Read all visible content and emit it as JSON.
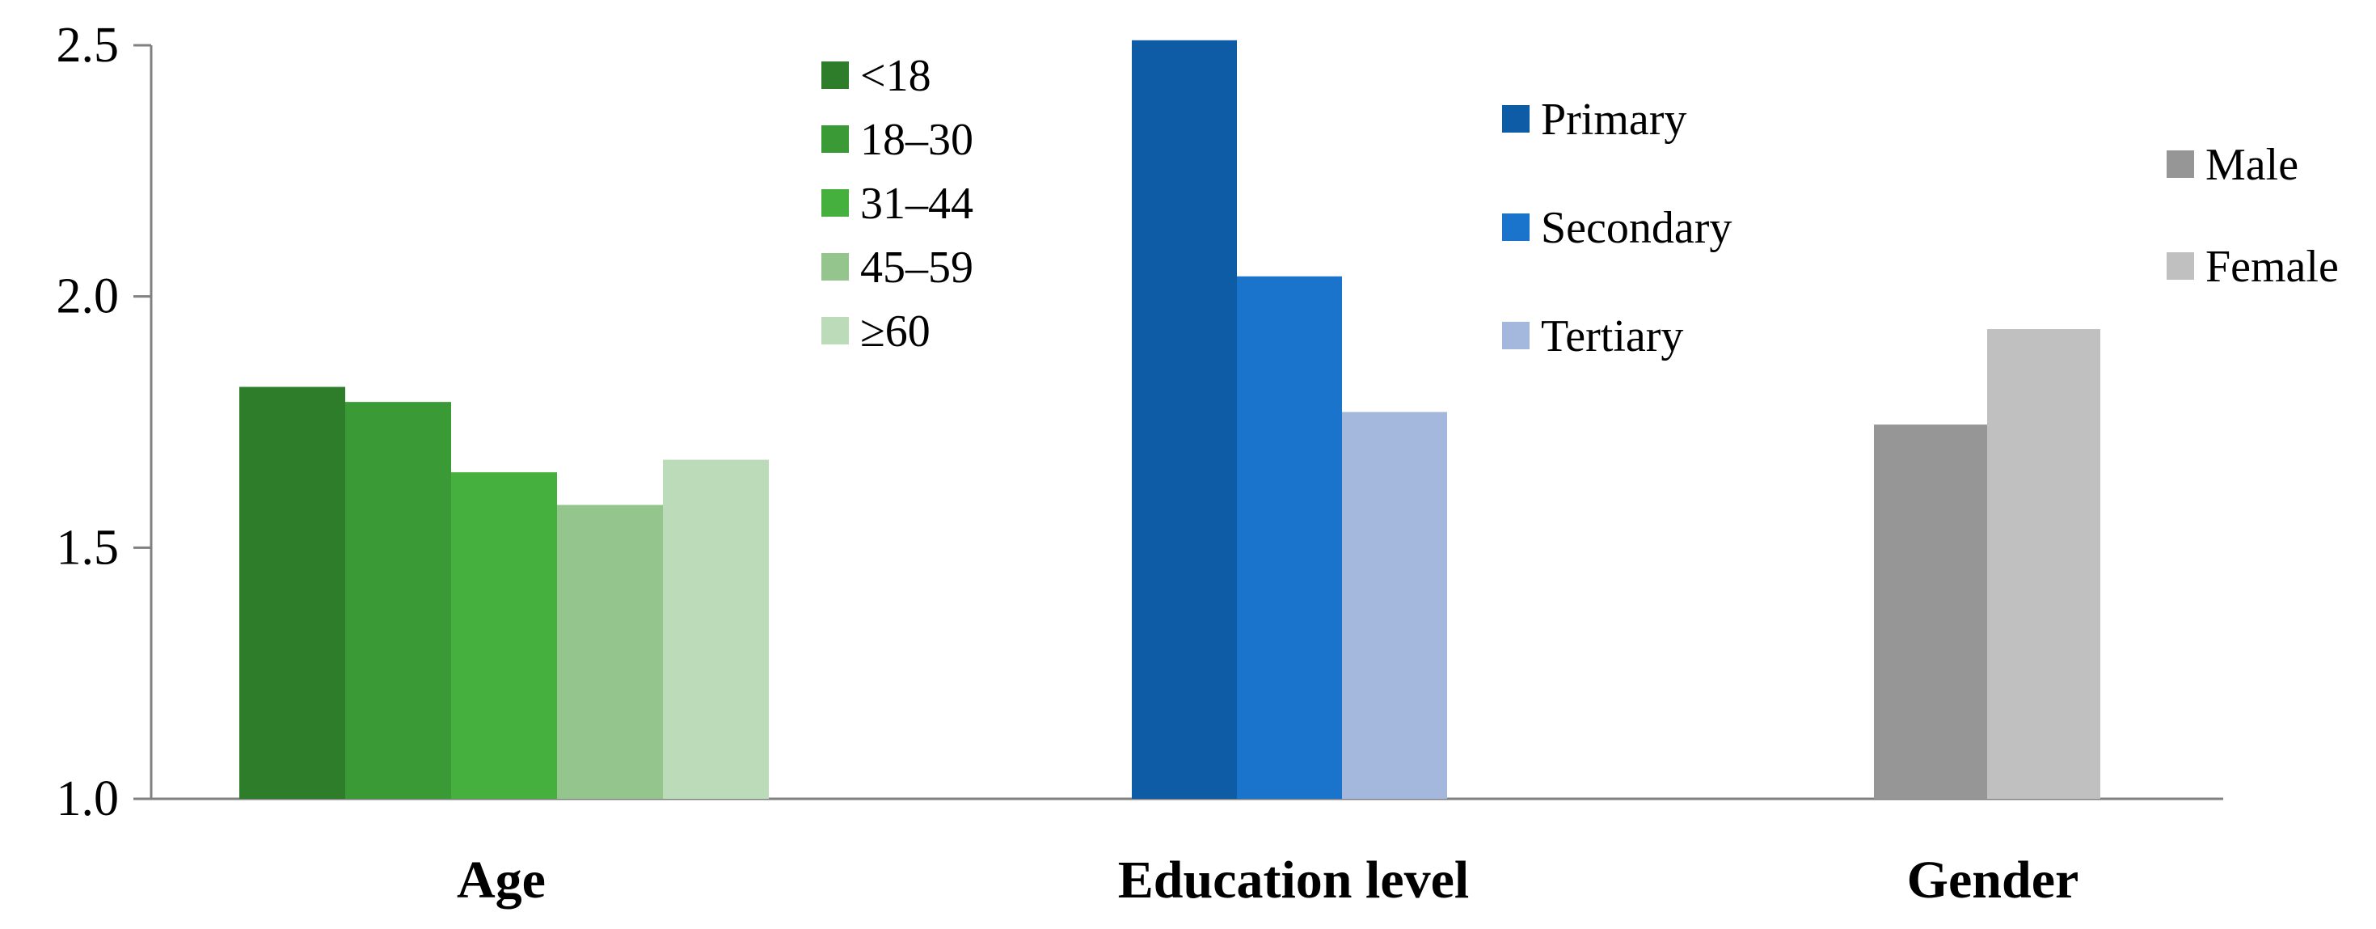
{
  "chart_data": {
    "type": "bar",
    "ylim": [
      1.0,
      2.5
    ],
    "yticks": [
      "1.0",
      "1.5",
      "2.0",
      "2.5"
    ],
    "grid": false,
    "groups": [
      {
        "category": "Age",
        "legend_position": "top-right of group",
        "series": [
          {
            "name": "<18",
            "value": 1.82,
            "color": "#2e7d2a"
          },
          {
            "name": "18–30",
            "value": 1.79,
            "color": "#3a9a35"
          },
          {
            "name": "31–44",
            "value": 1.65,
            "color": "#45b03e"
          },
          {
            "name": "45–59",
            "value": 1.585,
            "color": "#93c58d"
          },
          {
            "name": "≥60",
            "value": 1.675,
            "color": "#bcdbb8"
          }
        ]
      },
      {
        "category": "Education level",
        "legend_position": "top-right of group",
        "series": [
          {
            "name": "Primary",
            "value": 2.51,
            "color": "#0f5ca6"
          },
          {
            "name": "Secondary",
            "value": 2.04,
            "color": "#1b74cb"
          },
          {
            "name": "Tertiary",
            "value": 1.77,
            "color": "#a4b8de"
          }
        ]
      },
      {
        "category": "Gender",
        "legend_position": "top-right",
        "series": [
          {
            "name": "Male",
            "value": 1.745,
            "color": "#969696"
          },
          {
            "name": "Female",
            "value": 1.935,
            "color": "#c0c0c0"
          }
        ]
      }
    ]
  }
}
